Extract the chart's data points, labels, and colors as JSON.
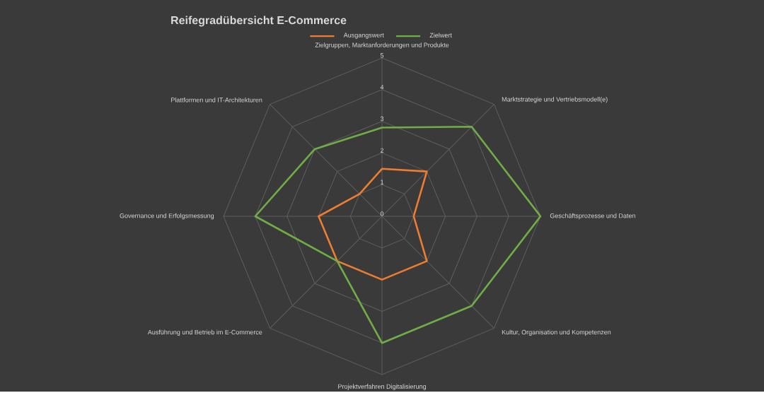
{
  "chart_data": {
    "type": "radar",
    "title": "Reifegradübersicht E-Commerce",
    "categories": [
      "Zielgruppen, Marktanforderungen und Produkte",
      "Marktstrategie und Vertriebsmodell(e)",
      "Geschäftsprozesse und Daten",
      "Kultur, Organisation und Kompetenzen",
      "Projektverfahren Digitalisierung",
      "Ausführung und Betrieb im E-Commerce",
      "Governance und Erfolgsmessung",
      "Plattformen und IT-Architekturen"
    ],
    "series": [
      {
        "name": "Ausgangswert",
        "color": "#ed7d31",
        "values": [
          1.5,
          2,
          1,
          2,
          2,
          2,
          2,
          1
        ]
      },
      {
        "name": "Zielwert",
        "color": "#70ad47",
        "values": [
          2.8,
          4,
          5,
          4,
          4,
          2,
          4,
          3
        ]
      }
    ],
    "ylim": [
      0,
      5
    ],
    "yticks": [
      0,
      1,
      2,
      3,
      4,
      5
    ],
    "grid": true,
    "legend": "top"
  }
}
